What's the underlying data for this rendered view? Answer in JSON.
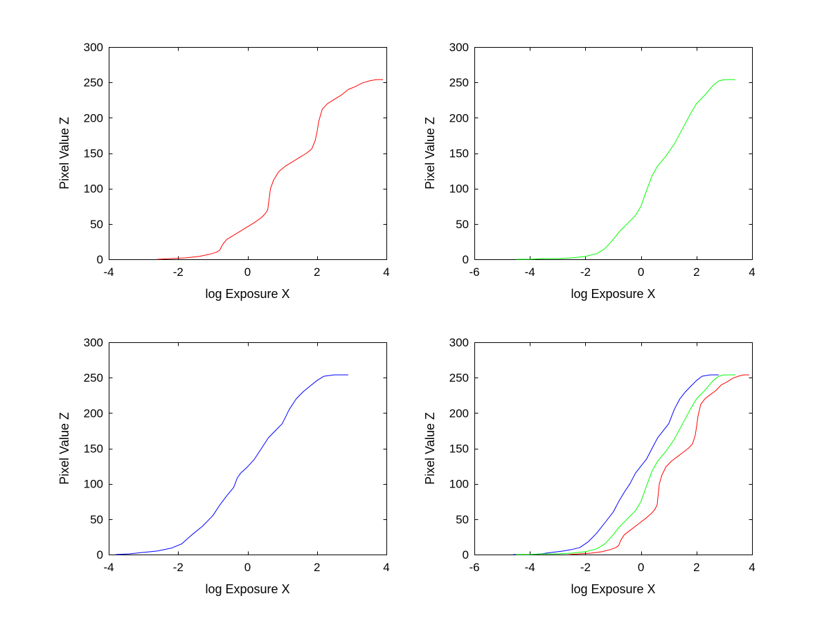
{
  "colors": {
    "red": "#ff0000",
    "green": "#00ff00",
    "blue": "#0000ff",
    "axes": "#000000",
    "background": "#ffffff"
  },
  "chart_data": [
    {
      "type": "line",
      "position": "top-left",
      "xlabel": "log Exposure X",
      "ylabel": "Pixel Value Z",
      "xlim": [
        -4,
        4
      ],
      "ylim": [
        0,
        300
      ],
      "xticks": [
        -4,
        -2,
        0,
        2,
        4
      ],
      "yticks": [
        0,
        50,
        100,
        150,
        200,
        250,
        300
      ],
      "grid": false,
      "series": [
        {
          "color": "#ff0000",
          "x": [
            -2.6,
            -2.2,
            -1.8,
            -1.4,
            -1.1,
            -0.9,
            -0.8,
            -0.75,
            -0.7,
            -0.6,
            -0.4,
            -0.2,
            0,
            0.2,
            0.4,
            0.5,
            0.58,
            0.62,
            0.66,
            0.75,
            0.9,
            1.1,
            1.3,
            1.5,
            1.7,
            1.85,
            1.95,
            2.0,
            2.05,
            2.15,
            2.3,
            2.5,
            2.7,
            2.9,
            3.1,
            3.3,
            3.5,
            3.7,
            3.9
          ],
          "y": [
            0,
            1,
            2,
            4,
            7,
            10,
            13,
            18,
            22,
            28,
            34,
            40,
            46,
            52,
            59,
            64,
            70,
            85,
            100,
            112,
            124,
            132,
            138,
            144,
            150,
            156,
            168,
            180,
            195,
            212,
            220,
            226,
            232,
            240,
            244,
            249,
            252,
            254,
            254
          ]
        }
      ]
    },
    {
      "type": "line",
      "position": "top-right",
      "xlabel": "log Exposure X",
      "ylabel": "Pixel Value Z",
      "xlim": [
        -6,
        4
      ],
      "ylim": [
        0,
        300
      ],
      "xticks": [
        -6,
        -4,
        -2,
        0,
        2,
        4
      ],
      "yticks": [
        0,
        50,
        100,
        150,
        200,
        250,
        300
      ],
      "grid": false,
      "series": [
        {
          "color": "#00ff00",
          "x": [
            -4.5,
            -4,
            -3.5,
            -3,
            -2.5,
            -2,
            -1.6,
            -1.3,
            -1.0,
            -0.8,
            -0.5,
            -0.2,
            0,
            0.2,
            0.4,
            0.6,
            0.9,
            1.2,
            1.5,
            1.8,
            2.0,
            2.3,
            2.6,
            2.8,
            3.0,
            3.2,
            3.4
          ],
          "y": [
            0,
            0,
            1,
            1,
            2,
            4,
            8,
            15,
            28,
            38,
            50,
            62,
            75,
            97,
            118,
            132,
            146,
            163,
            185,
            207,
            220,
            232,
            246,
            252,
            254,
            254,
            254
          ]
        }
      ]
    },
    {
      "type": "line",
      "position": "bottom-left",
      "xlabel": "log Exposure X",
      "ylabel": "Pixel Value Z",
      "xlim": [
        -4,
        4
      ],
      "ylim": [
        0,
        300
      ],
      "xticks": [
        -4,
        -2,
        0,
        2,
        4
      ],
      "yticks": [
        0,
        50,
        100,
        150,
        200,
        250,
        300
      ],
      "grid": false,
      "series": [
        {
          "color": "#0000ff",
          "x": [
            -3.8,
            -3.4,
            -3.0,
            -2.6,
            -2.2,
            -1.9,
            -1.6,
            -1.3,
            -1.0,
            -0.8,
            -0.6,
            -0.4,
            -0.3,
            -0.2,
            0,
            0.2,
            0.4,
            0.6,
            0.8,
            1.0,
            1.2,
            1.4,
            1.6,
            1.8,
            2.0,
            2.2,
            2.5,
            2.9
          ],
          "y": [
            0,
            1,
            3,
            5,
            9,
            15,
            28,
            40,
            55,
            70,
            83,
            95,
            108,
            115,
            124,
            135,
            150,
            165,
            175,
            185,
            205,
            220,
            230,
            238,
            246,
            252,
            254,
            254
          ]
        }
      ]
    },
    {
      "type": "line",
      "position": "bottom-right",
      "xlabel": "log Exposure X",
      "ylabel": "Pixel Value Z",
      "xlim": [
        -6,
        4
      ],
      "ylim": [
        0,
        300
      ],
      "xticks": [
        -6,
        -4,
        -2,
        0,
        2,
        4
      ],
      "yticks": [
        0,
        50,
        100,
        150,
        200,
        250,
        300
      ],
      "grid": false,
      "series": [
        {
          "color": "#0000ff",
          "x": [
            -4.6,
            -4.0,
            -3.6,
            -3.2,
            -2.8,
            -2.5,
            -2.2,
            -1.9,
            -1.6,
            -1.3,
            -1.0,
            -0.8,
            -0.6,
            -0.4,
            -0.2,
            0,
            0.2,
            0.4,
            0.6,
            0.8,
            1.0,
            1.2,
            1.4,
            1.6,
            1.8,
            2.0,
            2.2,
            2.5,
            2.8
          ],
          "y": [
            0,
            0,
            1,
            3,
            5,
            7,
            10,
            18,
            30,
            45,
            60,
            75,
            88,
            100,
            115,
            125,
            135,
            150,
            165,
            175,
            185,
            205,
            220,
            230,
            238,
            246,
            252,
            254,
            254
          ]
        },
        {
          "color": "#00ff00",
          "x": [
            -4.5,
            -4,
            -3.5,
            -3,
            -2.5,
            -2,
            -1.6,
            -1.3,
            -1.0,
            -0.8,
            -0.5,
            -0.2,
            0,
            0.2,
            0.4,
            0.6,
            0.9,
            1.2,
            1.5,
            1.8,
            2.0,
            2.3,
            2.6,
            2.8,
            3.0,
            3.2,
            3.4
          ],
          "y": [
            0,
            0,
            1,
            1,
            2,
            4,
            8,
            15,
            28,
            38,
            50,
            62,
            75,
            97,
            118,
            132,
            146,
            163,
            185,
            207,
            220,
            232,
            246,
            252,
            254,
            254,
            254
          ]
        },
        {
          "color": "#ff0000",
          "x": [
            -2.6,
            -2.2,
            -1.8,
            -1.4,
            -1.1,
            -0.9,
            -0.8,
            -0.75,
            -0.7,
            -0.6,
            -0.4,
            -0.2,
            0,
            0.2,
            0.4,
            0.5,
            0.58,
            0.62,
            0.66,
            0.75,
            0.9,
            1.1,
            1.3,
            1.5,
            1.7,
            1.85,
            1.95,
            2.0,
            2.05,
            2.15,
            2.3,
            2.5,
            2.7,
            2.9,
            3.1,
            3.3,
            3.5,
            3.7,
            3.9
          ],
          "y": [
            0,
            1,
            2,
            4,
            7,
            10,
            13,
            18,
            22,
            28,
            34,
            40,
            46,
            52,
            59,
            64,
            70,
            85,
            100,
            112,
            124,
            132,
            138,
            144,
            150,
            156,
            168,
            180,
            195,
            212,
            220,
            226,
            232,
            240,
            244,
            249,
            252,
            254,
            254
          ]
        }
      ]
    }
  ]
}
